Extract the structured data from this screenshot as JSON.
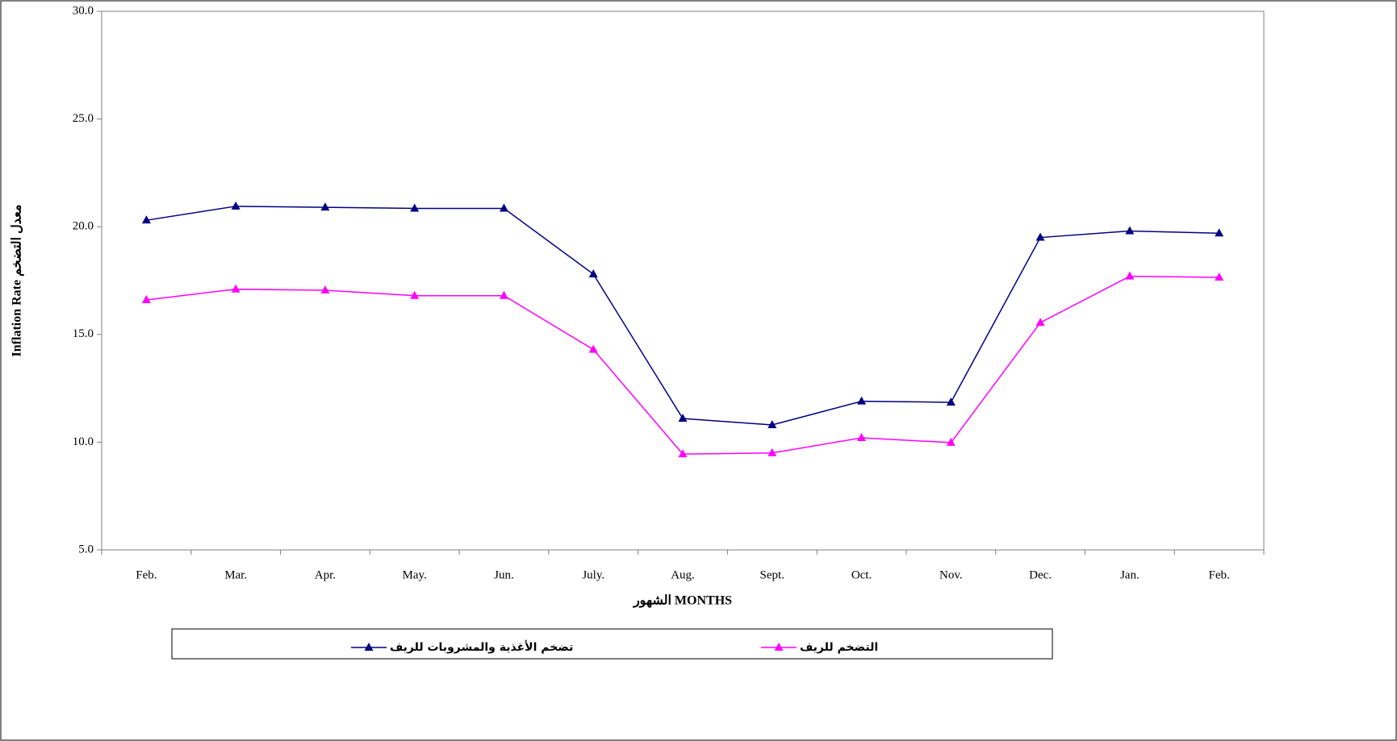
{
  "chart_data": {
    "type": "line",
    "y_label": "Inflation Rate معدل التضخم",
    "x_label": "الشهور  MONTHS",
    "categories": [
      "Feb.",
      "Mar.",
      "Apr.",
      "May.",
      "Jun.",
      "July.",
      "Aug.",
      "Sept.",
      "Oct.",
      "Nov.",
      "Dec.",
      "Jan.",
      "Feb."
    ],
    "series": [
      {
        "name": "تضخم الأغذية والمشروبات للريف",
        "color": "#000080",
        "values": [
          20.3,
          20.95,
          20.9,
          20.85,
          20.85,
          17.8,
          11.1,
          10.8,
          11.9,
          11.85,
          19.5,
          19.8,
          19.7
        ]
      },
      {
        "name": "التضخم للريف",
        "color": "#ff00ff",
        "values": [
          16.6,
          17.1,
          17.05,
          16.8,
          16.8,
          14.3,
          9.45,
          9.5,
          10.2,
          9.98,
          15.55,
          17.7,
          17.65
        ]
      }
    ],
    "ylim": [
      5,
      30
    ],
    "yticks": [
      {
        "value": 5,
        "label": "5.0"
      },
      {
        "value": 10,
        "label": "10.0"
      },
      {
        "value": 15,
        "label": "15.0"
      },
      {
        "value": 20,
        "label": "20.0"
      },
      {
        "value": 25,
        "label": "25.0"
      },
      {
        "value": 30,
        "label": "30.0"
      }
    ],
    "grid": false,
    "legend": "bottom"
  }
}
